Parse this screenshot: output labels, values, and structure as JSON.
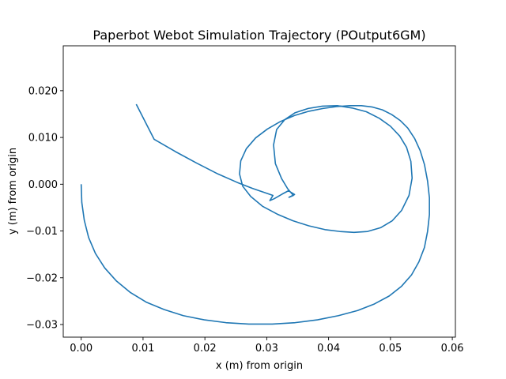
{
  "chart_data": {
    "type": "line",
    "title": "Paperbot Webot Simulation Trajectory (POutput6GM)",
    "xlabel": "x (m) from origin",
    "ylabel": "y (m) from origin",
    "xlim": [
      -0.0029,
      0.0605
    ],
    "ylim": [
      -0.0327,
      0.0296
    ],
    "xticks": [
      0.0,
      0.01,
      0.02,
      0.03,
      0.04,
      0.05,
      0.06
    ],
    "xtick_labels": [
      "0.00",
      "0.01",
      "0.02",
      "0.03",
      "0.04",
      "0.05",
      "0.06"
    ],
    "yticks": [
      -0.03,
      -0.02,
      -0.01,
      0.0,
      0.01,
      0.02
    ],
    "ytick_labels": [
      "−0.03",
      "−0.02",
      "−0.01",
      "0.000",
      "0.010",
      "0.020"
    ],
    "grid": false,
    "line_color": "#1f77b4",
    "series": [
      {
        "x": [
          0.0,
          0.0001,
          0.0005,
          0.0012,
          0.0023,
          0.0038,
          0.0057,
          0.0079,
          0.0105,
          0.0134,
          0.0165,
          0.0199,
          0.0234,
          0.0271,
          0.0309,
          0.0346,
          0.0382,
          0.0416,
          0.0447,
          0.0474,
          0.0498,
          0.0518,
          0.0534,
          0.0546,
          0.0555,
          0.056,
          0.0563,
          0.0563,
          0.056,
          0.0555,
          0.0548,
          0.0539,
          0.0528,
          0.0516,
          0.0502,
          0.0487,
          0.0471,
          0.0453,
          0.0434,
          0.0413,
          0.0391,
          0.0368,
          0.0345,
          0.0322,
          0.0301,
          0.0282,
          0.0267,
          0.0258,
          0.0256,
          0.0261,
          0.0274,
          0.0293,
          0.0317,
          0.0342,
          0.0368,
          0.0394,
          0.0418,
          0.0441,
          0.0463,
          0.0484,
          0.0503,
          0.0518,
          0.053,
          0.0535,
          0.0533,
          0.0526,
          0.0515,
          0.05,
          0.0482,
          0.0461,
          0.0438,
          0.0414,
          0.039,
          0.0367,
          0.0346,
          0.0329,
          0.0316,
          0.0311,
          0.0314,
          0.0324,
          0.0334,
          0.0343,
          0.0336,
          0.0345,
          0.0335,
          0.0325,
          0.0312,
          0.0305,
          0.031,
          0.0297,
          0.0277,
          0.0252,
          0.0221,
          0.0187,
          0.0152,
          0.0118,
          0.0089
        ],
        "y": [
          0.0,
          -0.0039,
          -0.0077,
          -0.0114,
          -0.0148,
          -0.0179,
          -0.0207,
          -0.0231,
          -0.0252,
          -0.0268,
          -0.0281,
          -0.029,
          -0.0296,
          -0.0299,
          -0.0299,
          -0.0296,
          -0.029,
          -0.0281,
          -0.027,
          -0.0256,
          -0.0239,
          -0.0218,
          -0.0194,
          -0.0166,
          -0.0135,
          -0.0101,
          -0.0065,
          -0.0029,
          0.0007,
          0.0042,
          0.0072,
          0.0098,
          0.012,
          0.0136,
          0.0149,
          0.0159,
          0.0165,
          0.0168,
          0.0168,
          0.0166,
          0.0162,
          0.0156,
          0.0147,
          0.0134,
          0.0118,
          0.0099,
          0.0076,
          0.005,
          0.0022,
          -0.0004,
          -0.0026,
          -0.0047,
          -0.0064,
          -0.0078,
          -0.0089,
          -0.0097,
          -0.0101,
          -0.0103,
          -0.0101,
          -0.0093,
          -0.0078,
          -0.0056,
          -0.0024,
          0.0013,
          0.0049,
          0.0079,
          0.0103,
          0.0124,
          0.0141,
          0.0155,
          0.0163,
          0.0168,
          0.0167,
          0.0162,
          0.0153,
          0.0138,
          0.0117,
          0.0084,
          0.0044,
          0.0012,
          -0.001,
          -0.0024,
          -0.0028,
          -0.0022,
          -0.0014,
          -0.0021,
          -0.0031,
          -0.0035,
          -0.0024,
          -0.0018,
          -0.0009,
          0.0004,
          0.0022,
          0.0045,
          0.007,
          0.0096,
          0.0171
        ]
      }
    ]
  }
}
